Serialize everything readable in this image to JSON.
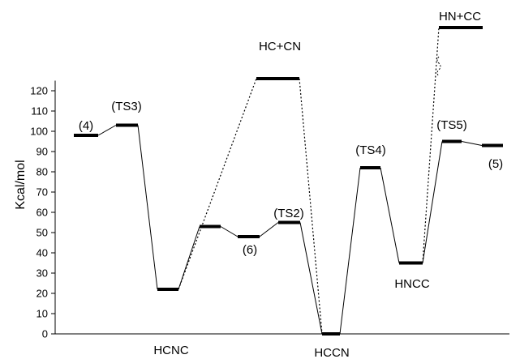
{
  "chart_data": {
    "type": "line",
    "title": "",
    "xlabel": "",
    "ylabel": "Kcal/mol",
    "ylim": [
      0,
      125
    ],
    "yticks": [
      0,
      10,
      20,
      30,
      40,
      50,
      60,
      70,
      80,
      90,
      100,
      110,
      120
    ],
    "grid": false,
    "levels": [
      {
        "id": "L4",
        "label": "(4)",
        "value": 98
      },
      {
        "id": "TS3",
        "label": "(TS3)",
        "value": 103
      },
      {
        "id": "HCNC",
        "label": "HCNC",
        "value": 22
      },
      {
        "id": "L6a",
        "label": "",
        "value": 53
      },
      {
        "id": "L6",
        "label": "(6)",
        "value": 48
      },
      {
        "id": "TS2",
        "label": "(TS2)",
        "value": 55
      },
      {
        "id": "HCCN",
        "label": "HCCN",
        "value": 0
      },
      {
        "id": "TS4",
        "label": "(TS4)",
        "value": 82
      },
      {
        "id": "HNCC",
        "label": "HNCC",
        "value": 35
      },
      {
        "id": "TS5",
        "label": "(TS5)",
        "value": 95
      },
      {
        "id": "L5",
        "label": "(5)",
        "value": 93
      },
      {
        "id": "HCCN_diss",
        "label": "HC+CN",
        "value": 126
      },
      {
        "id": "HNCC_diss",
        "label": "HN+CC",
        "value": 155
      }
    ],
    "connections": [
      {
        "from": "L4",
        "to": "TS3",
        "style": "solid"
      },
      {
        "from": "TS3",
        "to": "HCNC",
        "style": "solid"
      },
      {
        "from": "HCNC",
        "to": "L6a",
        "style": "solid"
      },
      {
        "from": "L6a",
        "to": "L6",
        "style": "solid"
      },
      {
        "from": "L6",
        "to": "TS2",
        "style": "solid"
      },
      {
        "from": "TS2",
        "to": "HCCN",
        "style": "solid"
      },
      {
        "from": "HCCN",
        "to": "TS4",
        "style": "solid"
      },
      {
        "from": "TS4",
        "to": "HNCC",
        "style": "solid"
      },
      {
        "from": "HNCC",
        "to": "TS5",
        "style": "solid"
      },
      {
        "from": "TS5",
        "to": "L5",
        "style": "solid"
      },
      {
        "from": "HCNC",
        "to": "HCCN_diss",
        "style": "dotted"
      },
      {
        "from": "HCCN_diss",
        "to": "HCCN",
        "style": "dotted"
      },
      {
        "from": "HNCC",
        "to": "HNCC_diss",
        "style": "dotted"
      }
    ]
  }
}
